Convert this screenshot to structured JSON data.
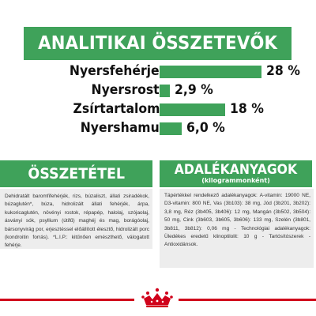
{
  "header": {
    "title": "ANALITIKAI ÖSSZETEVŐK"
  },
  "analytics": [
    {
      "label": "Nyersfehérje",
      "value_text": "28 %",
      "value": 28
    },
    {
      "label": "Nyersrost",
      "value_text": "2,9 %",
      "value": 2.9
    },
    {
      "label": "Zsírtartalom",
      "value_text": "18 %",
      "value": 18
    },
    {
      "label": "Nyershamu",
      "value_text": "6,0 %",
      "value": 6.0
    }
  ],
  "composition": {
    "title": "ÖSSZETÉTEL",
    "text": "Dehidratált baromfifehérjék, rizs, búzaliszt, állati zsiradékok, búzaglutén*, búza, hidrolizált állati fehérjék, árpa, kukoricaglutén, növényi rostok, répapép, halolaj, szójaolaj, ásványi sók, psyllium (útifű) maghéj és mag, borágóolaj, bársonyvirág por, erjesztéssel előállított élesztő, hidrolizált porc (kondroitin forrás). *L.I.P.: kitűnően emészthető, válogatott fehérje."
  },
  "additives": {
    "title": "ADALÉKANYAGOK",
    "subtitle": "(kilogrammonként)",
    "text": "Tápértékkel rendelkező adalékanyagok: A-vitamin: 19000 NE, D3-vitamin: 800 NE, Vas (3b103): 38 mg, Jód (3b201, 3b202): 3,8 mg, Réz (3b405, 3b406): 12 mg, Mangán (3b502, 3b504): 50 mg, Cink (3b603, 3b605, 3b606): 133 mg, Szelén (3b801, 3b811, 3b812): 0,06 mg - Technológiai adalékanyagok: Üledékes eredetű klinoptilolit: 10 g - Tartósítószerek - Antioxidánsok."
  },
  "colors": {
    "accent": "#3fa25a",
    "box": "#ededed",
    "brand_red": "#d0021b"
  },
  "logo": {
    "icon": "royal-canin-crown-icon"
  }
}
